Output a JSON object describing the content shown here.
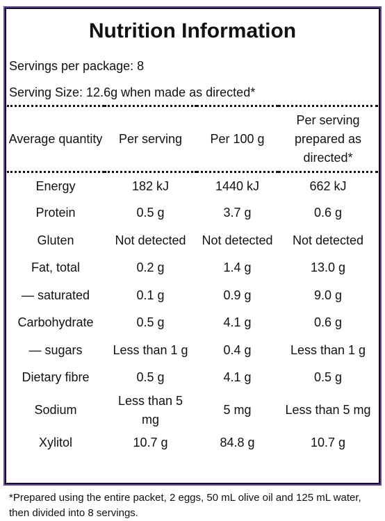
{
  "title": "Nutrition Information",
  "servings": "Servings per package: 8",
  "serving_size": "Serving Size: 12.6g when made as directed*",
  "table": {
    "header": [
      "Average quantity",
      "Per serving",
      "Per 100 g",
      "Per serving prepared as directed*"
    ],
    "rows": [
      [
        "Energy",
        "182 kJ",
        "1440 kJ",
        "662 kJ"
      ],
      [
        "Protein",
        "0.5 g",
        "3.7 g",
        "0.6 g"
      ],
      [
        "Gluten",
        "Not detected",
        "Not detected",
        "Not detected"
      ],
      [
        "Fat, total",
        "0.2 g",
        "1.4 g",
        "13.0 g"
      ],
      [
        "— saturated",
        "0.1 g",
        "0.9 g",
        "9.0 g"
      ],
      [
        "Carbohydrate",
        "0.5 g",
        "4.1 g",
        "0.6 g"
      ],
      [
        "— sugars",
        "Less than 1 g",
        "0.4 g",
        "Less than 1 g"
      ],
      [
        "Dietary fibre",
        "0.5 g",
        "4.1 g",
        "0.5 g"
      ],
      [
        "Sodium",
        "Less than 5 mg",
        "5 mg",
        "Less than 5 mg"
      ],
      [
        "Xylitol",
        "10.7 g",
        "84.8 g",
        "10.7 g"
      ]
    ]
  },
  "footnote": "*Prepared using the entire packet, 2 eggs, 50 mL olive oil and 125 mL water, then divided into 8 servings."
}
